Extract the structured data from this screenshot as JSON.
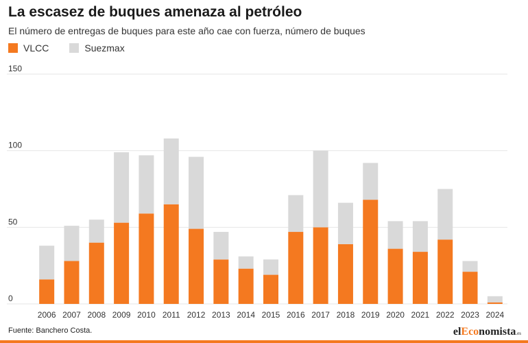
{
  "header": {
    "title": "La escasez de buques amenaza al petróleo",
    "subtitle": "El número de entregas de buques para este año cae con fuerza, número de buques"
  },
  "legend": {
    "items": [
      {
        "label": "VLCC",
        "color": "#f47920"
      },
      {
        "label": "Suezmax",
        "color": "#d9d9d9"
      }
    ]
  },
  "footer": {
    "source": "Fuente: Banchero Costa.",
    "brand_prefix": "el",
    "brand_accent": "Eco",
    "brand_rest": "nomista",
    "brand_suffix": ".es",
    "bar_color": "#f47920"
  },
  "chart_data": {
    "type": "bar",
    "stacked": true,
    "categories": [
      "2006",
      "2007",
      "2008",
      "2009",
      "2010",
      "2011",
      "2012",
      "2013",
      "2014",
      "2015",
      "2016",
      "2017",
      "2018",
      "2019",
      "2020",
      "2021",
      "2022",
      "2023",
      "2024"
    ],
    "series": [
      {
        "name": "VLCC",
        "color": "#f47920",
        "values": [
          16,
          28,
          40,
          53,
          59,
          65,
          49,
          29,
          23,
          19,
          47,
          50,
          39,
          68,
          36,
          34,
          42,
          21,
          1
        ]
      },
      {
        "name": "Suezmax",
        "color": "#d9d9d9",
        "values": [
          22,
          23,
          15,
          46,
          38,
          43,
          47,
          18,
          8,
          10,
          24,
          50,
          27,
          24,
          18,
          20,
          33,
          7,
          4
        ]
      }
    ],
    "ylim": [
      0,
      150
    ],
    "yticks": [
      0,
      50,
      100,
      150
    ],
    "grid": true
  }
}
